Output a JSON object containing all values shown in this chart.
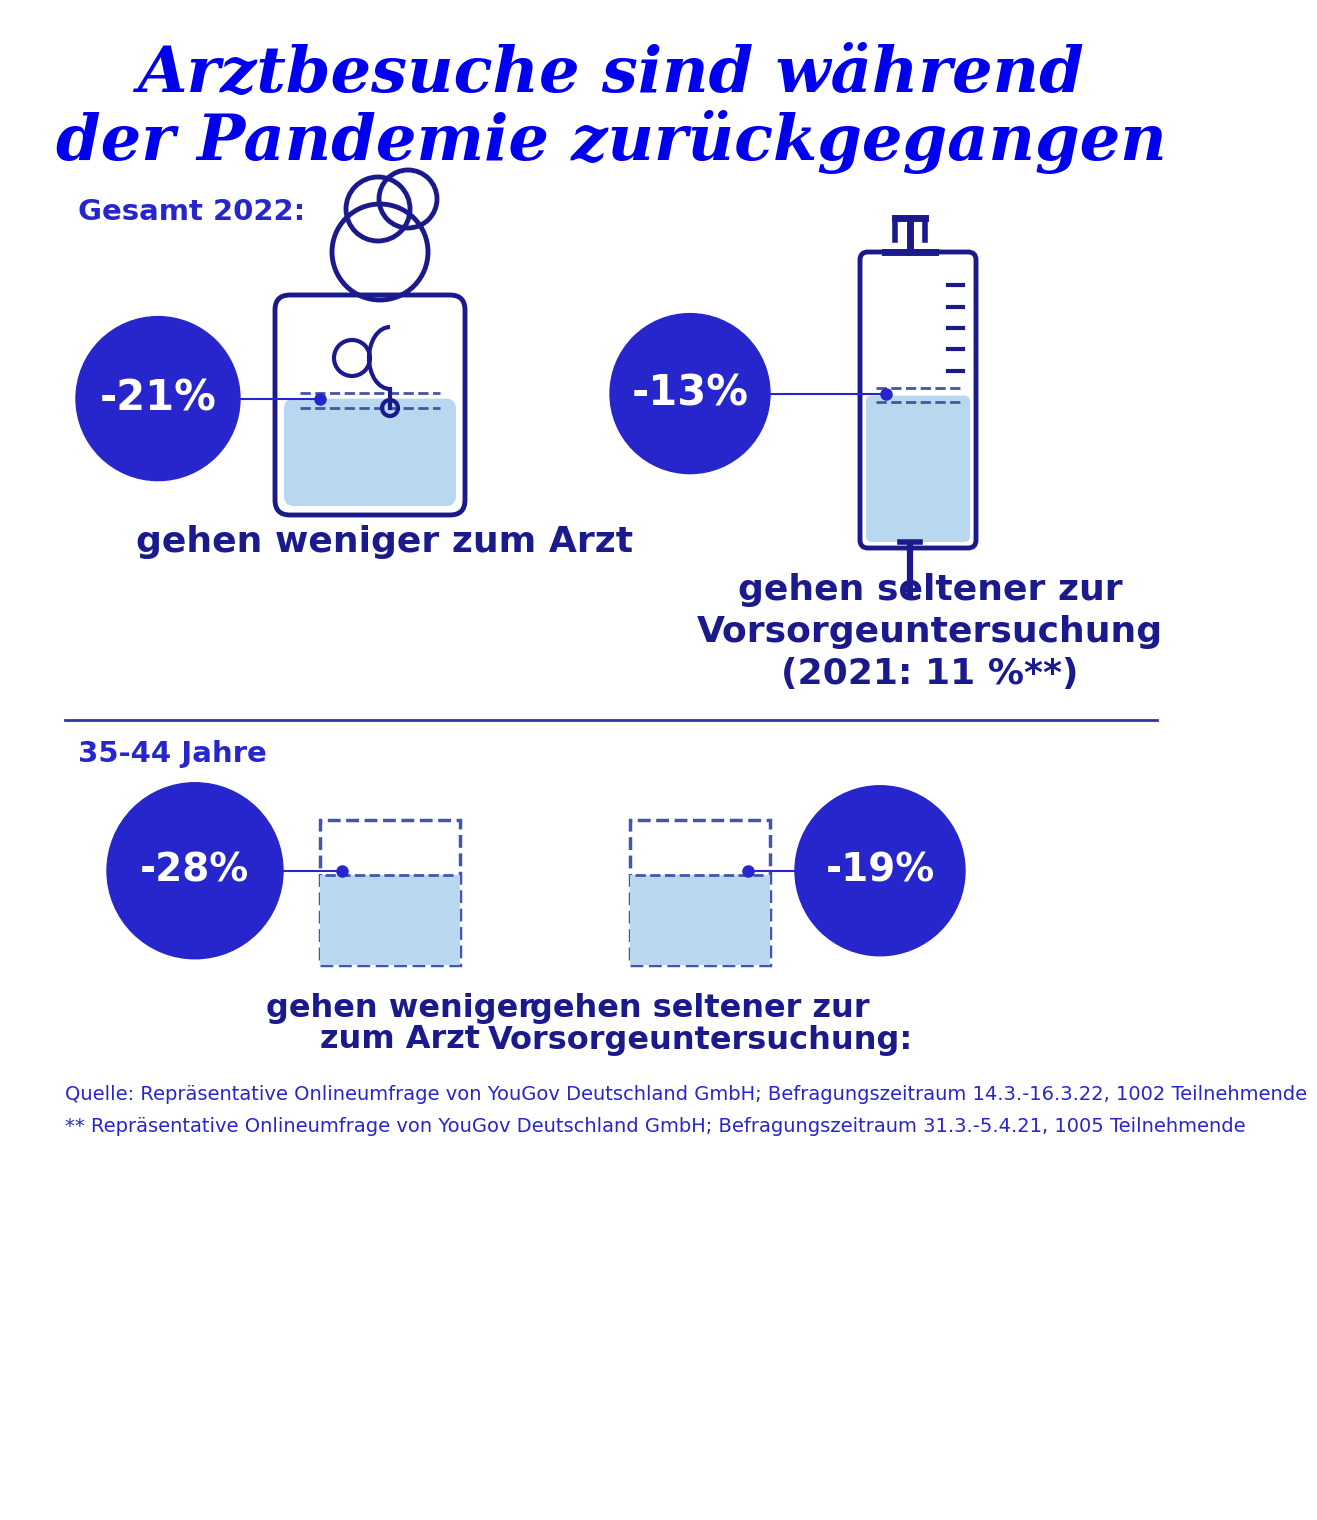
{
  "title_line1": "Arztbesuche sind während",
  "title_line2": "der Pandemie zurückgegangen",
  "title_color": "#0000EE",
  "dark_blue": "#1a1a8c",
  "circle_blue": "#2626cc",
  "light_blue": "#b8d8f0",
  "dashed_blue": "#4455aa",
  "divider_color": "#3333aa",
  "section1_label": "Gesamt 2022:",
  "pct1_doctor": "-21%",
  "pct1_syringe": "-13%",
  "label1_doctor": "gehen weniger zum Arzt",
  "label1_syringe_l1": "gehen seltener zur",
  "label1_syringe_l2": "Vorsorgeuntersuchung",
  "label1_syringe_l3": "(2021: 11 %**)",
  "section2_label": "35-44 Jahre",
  "pct2_doctor": "-28%",
  "pct2_syringe": "-19%",
  "label2_doctor_l1": "gehen weniger",
  "label2_doctor_l2": "zum Arzt",
  "label2_syringe_l1": "gehen seltener zur",
  "label2_syringe_l2": "Vorsorgeuntersuchung:",
  "footer1": "Quelle: Repräsentative Onlineumfrage von YouGov Deutschland GmbH; Befragungszeitraum 14.3.-16.3.22, 1002 Teilnehmende",
  "footer2": "** Repräsentative Onlineumfrage von YouGov Deutschland GmbH; Befragungszeitraum 31.3.-5.4.21, 1005 Teilnehmende",
  "bg_color": "#ffffff"
}
